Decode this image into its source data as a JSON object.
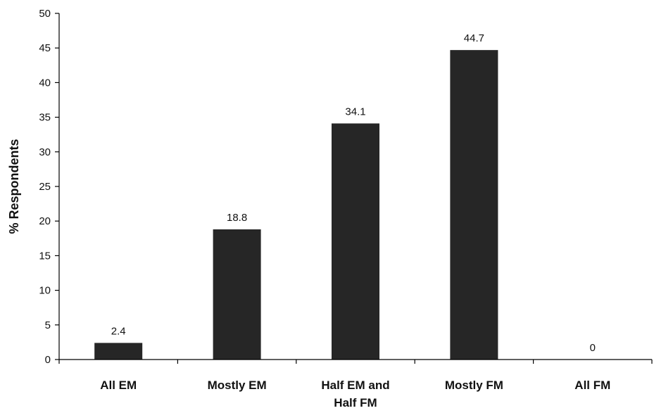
{
  "chart_data": {
    "type": "bar",
    "title": "",
    "xlabel": "",
    "ylabel": "% Respondents",
    "ylim": [
      0,
      50
    ],
    "yticks": [
      0,
      5,
      10,
      15,
      20,
      25,
      30,
      35,
      40,
      45,
      50
    ],
    "grid": false,
    "legend": "none",
    "bar_color": "#262626",
    "categories": [
      [
        "All EM"
      ],
      [
        "Mostly EM"
      ],
      [
        "Half EM and",
        "Half FM"
      ],
      [
        "Mostly FM"
      ],
      [
        "All FM"
      ]
    ],
    "values": [
      2.4,
      18.8,
      34.1,
      44.7,
      0
    ],
    "data_labels": [
      "2.4",
      "18.8",
      "34.1",
      "44.7",
      "0"
    ]
  }
}
